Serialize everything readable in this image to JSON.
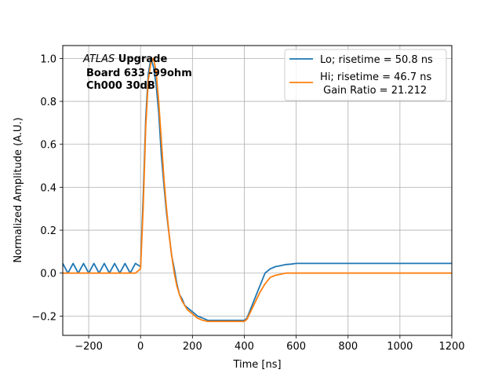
{
  "chart_data": {
    "type": "line",
    "xlabel": "Time [ns]",
    "ylabel": "Normalized Amplitude (A.U.)",
    "xlim": [
      -300,
      1200
    ],
    "ylim": [
      -0.29,
      1.06
    ],
    "xticks": [
      -200,
      0,
      200,
      400,
      600,
      800,
      1000,
      1200
    ],
    "yticks": [
      -0.2,
      0.0,
      0.2,
      0.4,
      0.6,
      0.8,
      1.0
    ],
    "xtick_labels": [
      "−200",
      "0",
      "200",
      "400",
      "600",
      "800",
      "1000",
      "1200"
    ],
    "ytick_labels": [
      "−0.2",
      "0.0",
      "0.2",
      "0.4",
      "0.6",
      "0.8",
      "1.0"
    ],
    "grid": true,
    "legend_position": "top-right",
    "annotation": {
      "line1_italic": "ATLAS",
      "line1_bold": " Upgrade",
      "line2": "Board 633 -99ohm",
      "line3": "Ch000 30dB"
    },
    "series": [
      {
        "name": "Lo; risetime = 50.8 ns",
        "color": "#1f77b4",
        "x": [
          -300,
          -280,
          -260,
          -240,
          -220,
          -200,
          -180,
          -160,
          -140,
          -120,
          -100,
          -80,
          -60,
          -40,
          -20,
          0,
          10,
          20,
          30,
          40,
          50,
          60,
          70,
          80,
          90,
          100,
          110,
          120,
          130,
          140,
          150,
          160,
          170,
          180,
          200,
          220,
          240,
          260,
          280,
          300,
          320,
          340,
          360,
          380,
          400,
          410,
          420,
          440,
          460,
          480,
          500,
          520,
          540,
          560,
          580,
          600,
          640,
          680,
          720,
          760,
          800,
          840,
          880,
          920,
          960,
          1000,
          1040,
          1080,
          1120,
          1160,
          1200
        ],
        "y": [
          0.045,
          0.0,
          0.045,
          0.0,
          0.045,
          0.0,
          0.045,
          0.0,
          0.045,
          0.0,
          0.045,
          0.0,
          0.045,
          0.0,
          0.045,
          0.03,
          0.35,
          0.72,
          0.93,
          1.0,
          0.96,
          0.88,
          0.75,
          0.55,
          0.41,
          0.28,
          0.18,
          0.08,
          0.02,
          -0.05,
          -0.1,
          -0.12,
          -0.15,
          -0.16,
          -0.18,
          -0.2,
          -0.21,
          -0.22,
          -0.22,
          -0.22,
          -0.22,
          -0.22,
          -0.22,
          -0.22,
          -0.22,
          -0.21,
          -0.18,
          -0.12,
          -0.06,
          0.0,
          0.02,
          0.03,
          0.035,
          0.04,
          0.042,
          0.045,
          0.045,
          0.045,
          0.045,
          0.045,
          0.045,
          0.045,
          0.045,
          0.045,
          0.045,
          0.045,
          0.045,
          0.045,
          0.045,
          0.045,
          0.045
        ]
      },
      {
        "name": "Hi; risetime = 46.7 ns\n Gain Ratio = 21.212",
        "color": "#ff7f0e",
        "x": [
          -300,
          -200,
          -100,
          -20,
          0,
          10,
          20,
          30,
          40,
          50,
          60,
          70,
          80,
          90,
          100,
          110,
          120,
          130,
          140,
          150,
          160,
          170,
          180,
          200,
          220,
          240,
          260,
          280,
          300,
          320,
          340,
          360,
          380,
          400,
          410,
          420,
          440,
          460,
          480,
          500,
          520,
          540,
          560,
          580,
          600,
          700,
          800,
          900,
          1000,
          1100,
          1200
        ],
        "y": [
          0.0,
          0.0,
          0.0,
          0.0,
          0.02,
          0.3,
          0.68,
          0.9,
          0.98,
          1.0,
          0.94,
          0.8,
          0.62,
          0.44,
          0.3,
          0.18,
          0.08,
          0.0,
          -0.06,
          -0.1,
          -0.13,
          -0.15,
          -0.17,
          -0.19,
          -0.21,
          -0.22,
          -0.225,
          -0.225,
          -0.225,
          -0.225,
          -0.225,
          -0.225,
          -0.225,
          -0.225,
          -0.215,
          -0.19,
          -0.14,
          -0.09,
          -0.05,
          -0.02,
          -0.01,
          -0.005,
          0.0,
          0.0,
          0.0,
          0.0,
          0.0,
          0.0,
          0.0,
          0.0,
          0.0
        ]
      }
    ]
  }
}
